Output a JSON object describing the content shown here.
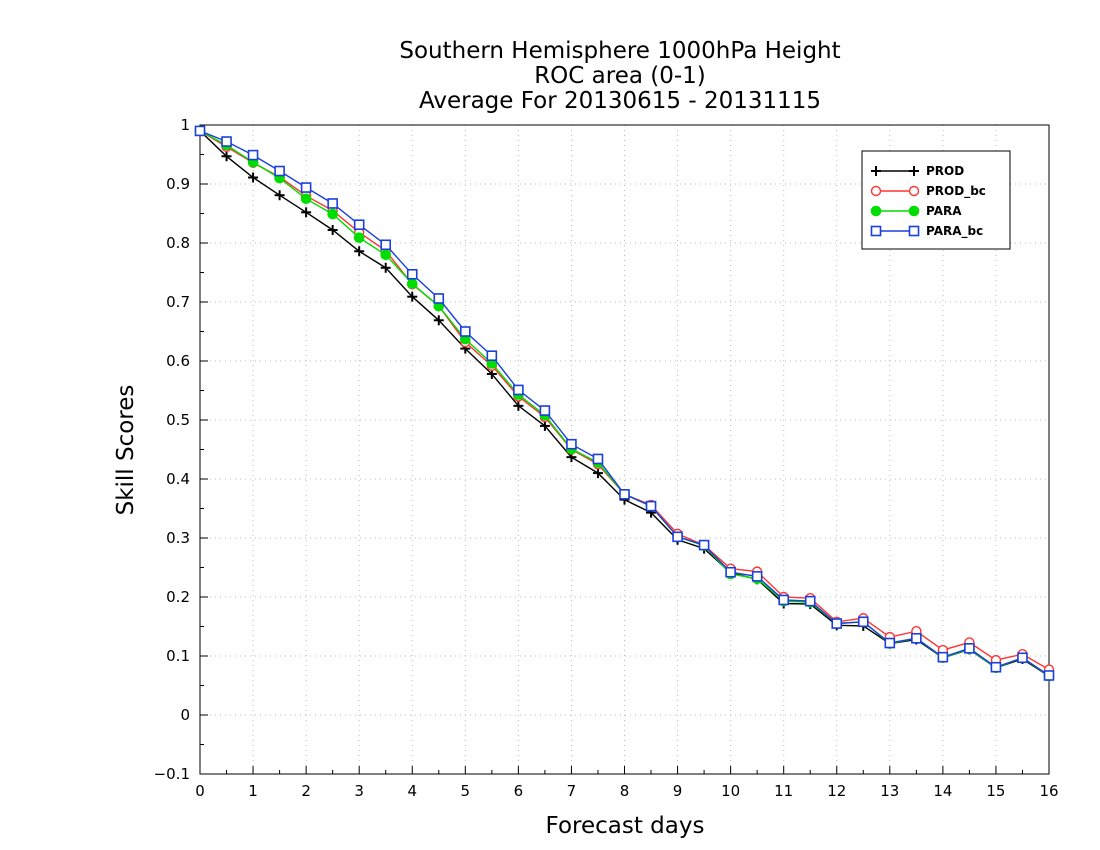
{
  "chart_data": {
    "type": "line",
    "title": [
      "Southern Hemisphere 1000hPa Height",
      "ROC area (0-1)",
      "Average For 20130615 - 20131115"
    ],
    "xlabel": "Forecast days",
    "ylabel": "Skill Scores",
    "xlim": [
      0,
      16
    ],
    "ylim": [
      -0.1,
      1
    ],
    "xticks": [
      0,
      1,
      2,
      3,
      4,
      5,
      6,
      7,
      8,
      9,
      10,
      11,
      12,
      13,
      14,
      15,
      16
    ],
    "yticks": [
      -0.1,
      0,
      0.1,
      0.2,
      0.3,
      0.4,
      0.5,
      0.6,
      0.7,
      0.8,
      0.9,
      1
    ],
    "ytick_labels": [
      "−0.1",
      "0",
      "0.1",
      "0.2",
      "0.3",
      "0.4",
      "0.5",
      "0.6",
      "0.7",
      "0.8",
      "0.9",
      "1"
    ],
    "grid": true,
    "legend_position": "top-right",
    "x": [
      0,
      0.5,
      1,
      1.5,
      2,
      2.5,
      3,
      3.5,
      4,
      4.5,
      5,
      5.5,
      6,
      6.5,
      7,
      7.5,
      8,
      8.5,
      9,
      9.5,
      10,
      10.5,
      11,
      11.5,
      12,
      12.5,
      13,
      13.5,
      14,
      14.5,
      15,
      15.5,
      16
    ],
    "series": [
      {
        "name": "PROD",
        "color": "#000000",
        "marker": "plus",
        "values": [
          0.99,
          0.947,
          0.911,
          0.881,
          0.852,
          0.822,
          0.786,
          0.758,
          0.709,
          0.669,
          0.621,
          0.578,
          0.524,
          0.49,
          0.437,
          0.41,
          0.365,
          0.343,
          0.297,
          0.282,
          0.241,
          0.23,
          0.189,
          0.188,
          0.152,
          0.151,
          0.121,
          0.128,
          0.097,
          0.111,
          0.08,
          0.095,
          0.066
        ]
      },
      {
        "name": "PROD_bc",
        "color": "#ff3333",
        "marker": "circle-open",
        "values": [
          0.99,
          0.963,
          0.936,
          0.912,
          0.88,
          0.855,
          0.818,
          0.787,
          0.73,
          0.693,
          0.632,
          0.592,
          0.54,
          0.505,
          0.45,
          0.425,
          0.374,
          0.356,
          0.307,
          0.288,
          0.248,
          0.243,
          0.2,
          0.198,
          0.158,
          0.164,
          0.132,
          0.142,
          0.11,
          0.123,
          0.093,
          0.103,
          0.077
        ]
      },
      {
        "name": "PARA",
        "color": "#00dd00",
        "marker": "circle-filled",
        "values": [
          0.99,
          0.966,
          0.937,
          0.91,
          0.875,
          0.849,
          0.809,
          0.78,
          0.731,
          0.693,
          0.637,
          0.596,
          0.543,
          0.508,
          0.451,
          0.428,
          0.374,
          0.354,
          0.302,
          0.287,
          0.239,
          0.231,
          0.193,
          0.191,
          0.155,
          0.158,
          0.121,
          0.13,
          0.097,
          0.112,
          0.08,
          0.097,
          0.066
        ]
      },
      {
        "name": "PARA_bc",
        "color": "#1a3fdd",
        "marker": "square-open",
        "values": [
          0.99,
          0.972,
          0.949,
          0.922,
          0.894,
          0.867,
          0.831,
          0.797,
          0.747,
          0.706,
          0.65,
          0.609,
          0.551,
          0.516,
          0.459,
          0.434,
          0.374,
          0.354,
          0.302,
          0.288,
          0.242,
          0.235,
          0.195,
          0.193,
          0.155,
          0.158,
          0.122,
          0.13,
          0.098,
          0.113,
          0.081,
          0.097,
          0.067
        ]
      }
    ]
  }
}
